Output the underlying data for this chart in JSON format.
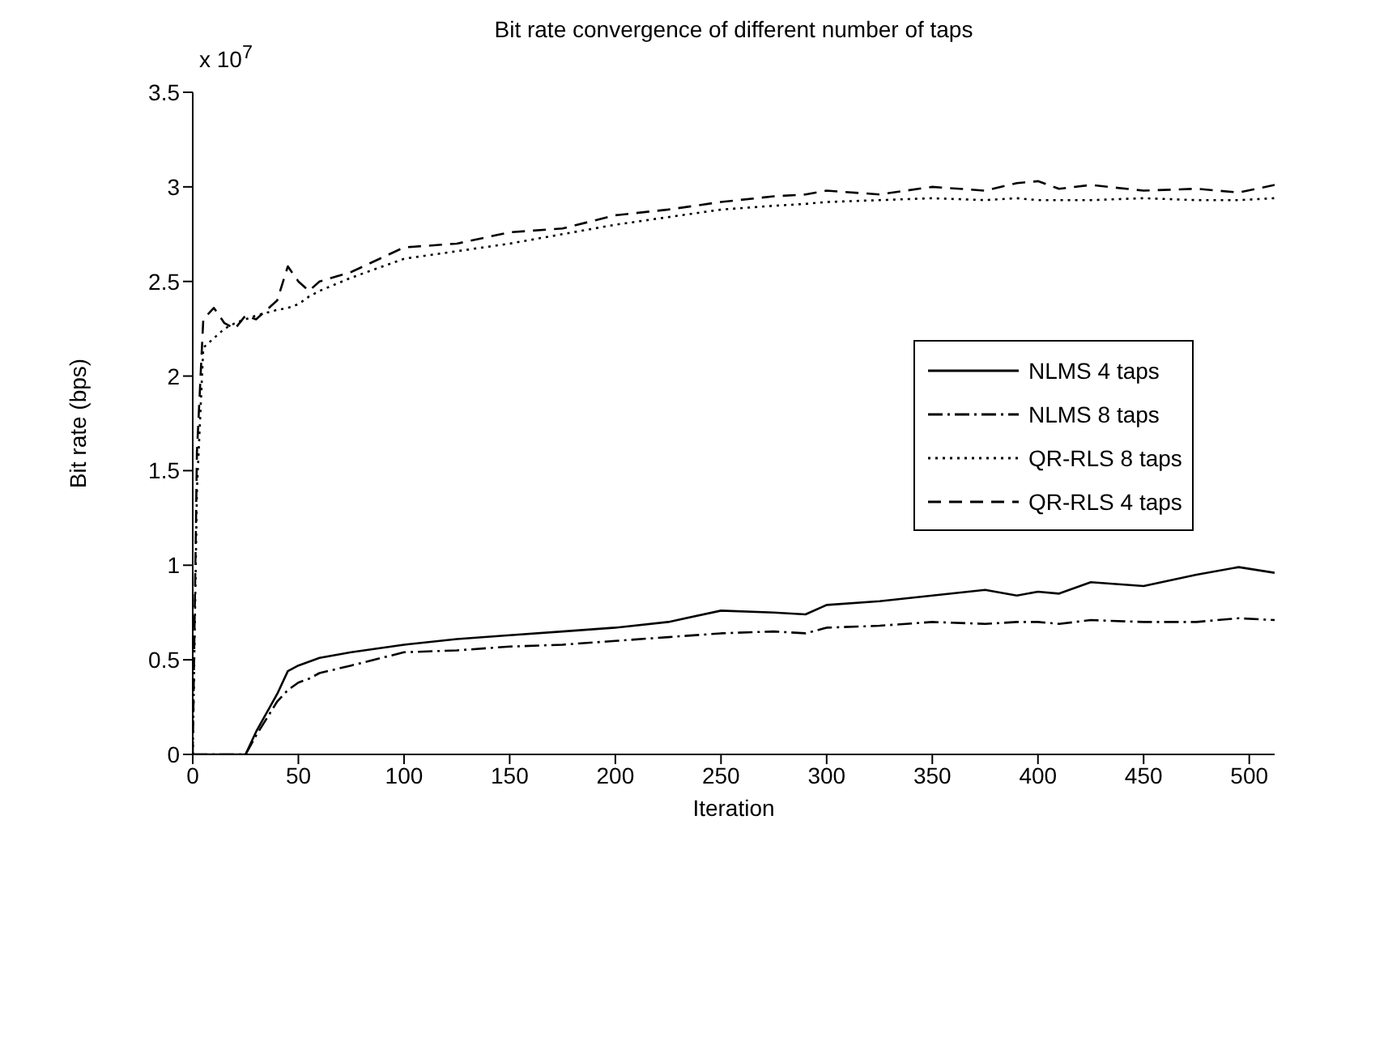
{
  "chart_data": {
    "type": "line",
    "title": "Bit rate convergence of different number of taps",
    "xlabel": "Iteration",
    "ylabel": "Bit rate (bps)",
    "annotations": [
      "x 10$^{7}$"
    ],
    "x": [
      0,
      2,
      5,
      10,
      15,
      20,
      25,
      30,
      40,
      45,
      50,
      55,
      60,
      75,
      100,
      125,
      150,
      175,
      200,
      225,
      250,
      275,
      290,
      300,
      325,
      350,
      375,
      390,
      400,
      410,
      425,
      450,
      475,
      495,
      512
    ],
    "series": [
      {
        "name": "NLMS 4 taps",
        "color": "#000000",
        "line_style": "solid",
        "values": [
          0,
          0,
          0,
          0,
          0,
          0,
          0,
          0.12,
          0.32,
          0.44,
          0.47,
          0.49,
          0.51,
          0.54,
          0.58,
          0.61,
          0.63,
          0.65,
          0.67,
          0.7,
          0.76,
          0.75,
          0.74,
          0.79,
          0.81,
          0.84,
          0.87,
          0.84,
          0.86,
          0.85,
          0.91,
          0.89,
          0.95,
          0.99,
          0.96
        ]
      },
      {
        "name": "NLMS 8 taps",
        "color": "#000000",
        "line_style": "dashdot",
        "values": [
          0,
          0,
          0,
          0,
          0,
          0,
          0,
          0.1,
          0.28,
          0.34,
          0.38,
          0.4,
          0.43,
          0.47,
          0.54,
          0.55,
          0.57,
          0.58,
          0.6,
          0.62,
          0.64,
          0.65,
          0.64,
          0.67,
          0.68,
          0.7,
          0.69,
          0.7,
          0.7,
          0.69,
          0.71,
          0.7,
          0.7,
          0.72,
          0.71
        ]
      },
      {
        "name": "QR-RLS 8 taps",
        "color": "#000000",
        "line_style": "dotted",
        "values": [
          0,
          1.4,
          2.15,
          2.2,
          2.25,
          2.28,
          2.3,
          2.32,
          2.35,
          2.36,
          2.38,
          2.42,
          2.45,
          2.52,
          2.62,
          2.66,
          2.7,
          2.75,
          2.8,
          2.84,
          2.88,
          2.9,
          2.91,
          2.92,
          2.93,
          2.94,
          2.93,
          2.94,
          2.93,
          2.93,
          2.93,
          2.94,
          2.93,
          2.93,
          2.94
        ]
      },
      {
        "name": "QR-RLS 4 taps",
        "color": "#000000",
        "line_style": "dashed",
        "values": [
          0,
          1.6,
          2.3,
          2.36,
          2.28,
          2.25,
          2.32,
          2.3,
          2.4,
          2.58,
          2.5,
          2.45,
          2.5,
          2.55,
          2.68,
          2.7,
          2.76,
          2.78,
          2.85,
          2.88,
          2.92,
          2.95,
          2.96,
          2.98,
          2.96,
          3.0,
          2.98,
          3.02,
          3.03,
          2.99,
          3.01,
          2.98,
          2.99,
          2.97,
          3.01
        ]
      }
    ],
    "xlim": [
      0,
      512
    ],
    "xticks": [
      0,
      50,
      100,
      150,
      200,
      250,
      300,
      350,
      400,
      450,
      500
    ],
    "ylim": [
      0,
      3.5
    ],
    "yticks": [
      0,
      0.5,
      1,
      1.5,
      2,
      2.5,
      3,
      3.5
    ],
    "grid": false,
    "legend": "right",
    "marker": "none"
  }
}
